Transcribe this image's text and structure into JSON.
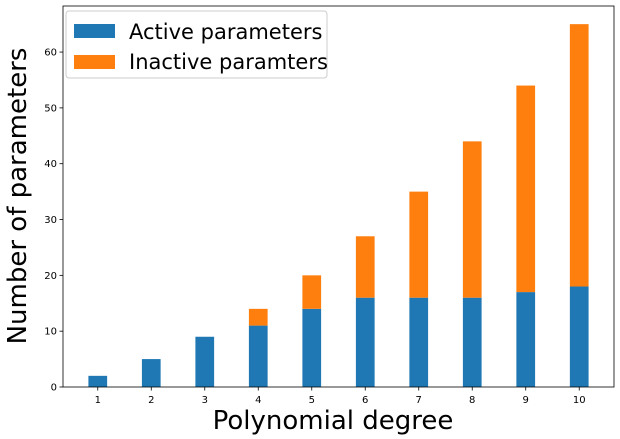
{
  "chart_data": {
    "type": "bar",
    "stacked": true,
    "categories": [
      "1",
      "2",
      "3",
      "4",
      "5",
      "6",
      "7",
      "8",
      "9",
      "10"
    ],
    "series": [
      {
        "name": "Active parameters",
        "color": "#1f77b4",
        "values": [
          2,
          5,
          9,
          11,
          14,
          16,
          16,
          16,
          17,
          18
        ]
      },
      {
        "name": "Inactive paramters",
        "color": "#ff7f0e",
        "values": [
          0,
          0,
          0,
          3,
          6,
          11,
          19,
          28,
          37,
          47
        ]
      }
    ],
    "title": "",
    "xlabel": "Polynomial degree",
    "ylabel": "Number of parameters",
    "ylim": [
      0,
      68.25
    ],
    "yticks": [
      0,
      10,
      20,
      30,
      40,
      50,
      60
    ],
    "grid": false,
    "legend_position": "top-left"
  }
}
